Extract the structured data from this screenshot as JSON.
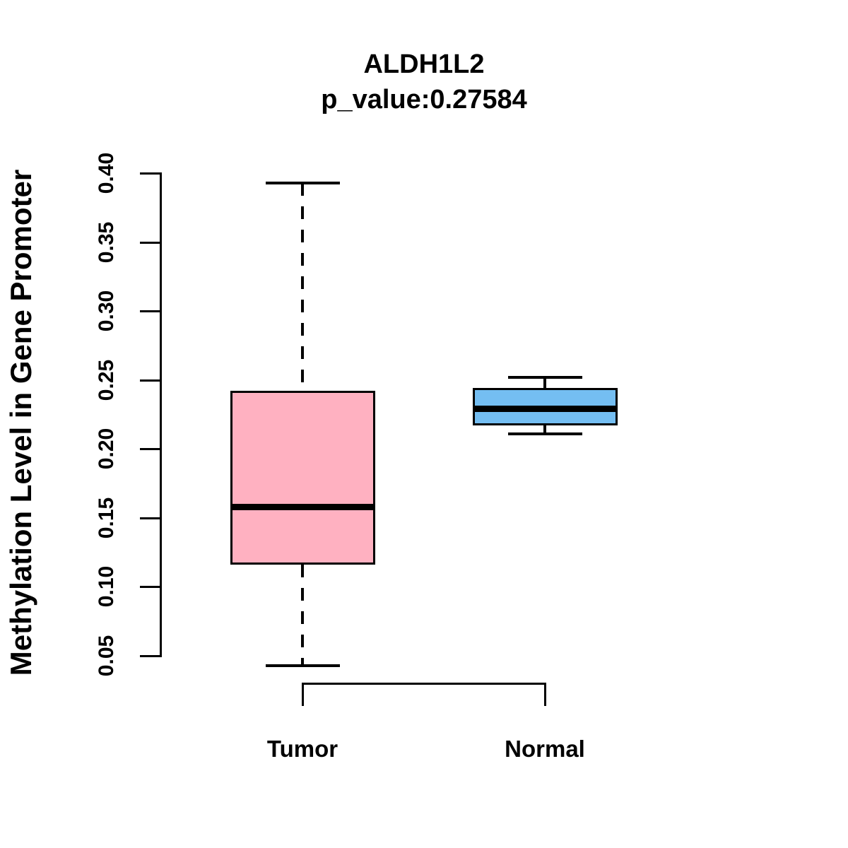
{
  "chart_data": {
    "type": "boxplot",
    "title": "ALDH1L2",
    "subtitle": "p_value:0.27584",
    "ylabel": "Methylation Level in Gene Promoter",
    "xlabel": "",
    "categories": [
      "Tumor",
      "Normal"
    ],
    "ylim": [
      0.05,
      0.4
    ],
    "y_ticks": [
      "0.05",
      "0.10",
      "0.15",
      "0.20",
      "0.25",
      "0.30",
      "0.35",
      "0.40"
    ],
    "grid": false,
    "legend": "none",
    "series": [
      {
        "name": "Tumor",
        "whisker_low": 0.043,
        "q1": 0.116,
        "median": 0.158,
        "q3": 0.242,
        "whisker_high": 0.393,
        "fill_color": "#FFB1C1"
      },
      {
        "name": "Normal",
        "whisker_low": 0.211,
        "q1": 0.217,
        "median": 0.229,
        "q3": 0.244,
        "whisker_high": 0.252,
        "fill_color": "#74BEF2"
      }
    ],
    "colors": {
      "tumor_fill": "#FFB1C1",
      "normal_fill": "#74BEF2",
      "line": "#000000",
      "background": "#ffffff"
    }
  }
}
